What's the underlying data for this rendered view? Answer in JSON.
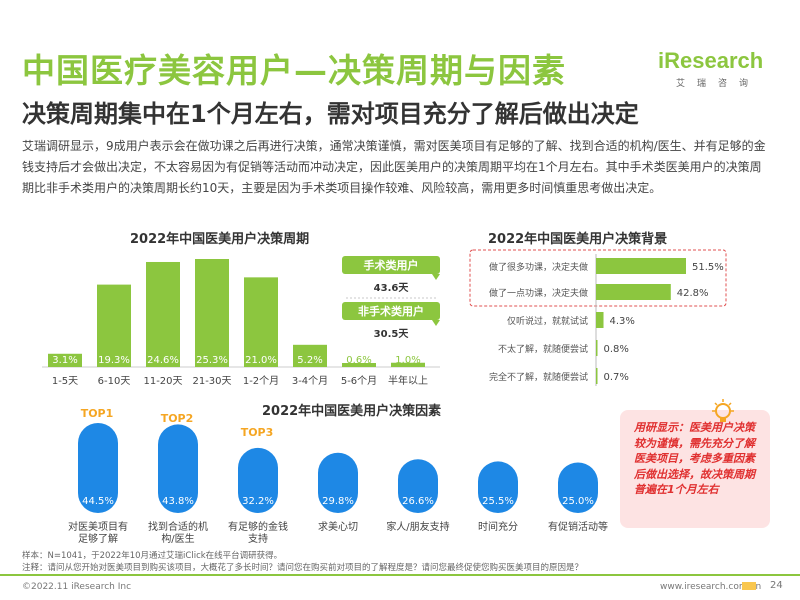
{
  "header": {
    "title": "中国医疗美容用户—决策周期与因素",
    "subtitle": "决策周期集中在1个月左右，需对项目充分了解后做出决定",
    "logo_text": "iResearch",
    "logo_sub": "艾瑞咨询"
  },
  "intro": "艾瑞调研显示，9成用户表示会在做功课之后再进行决策，通常决策谨慎，需对医美项目有足够的了解、找到合适的机构/医生、并有足够的金钱支持后才会做出决定，不太容易因为有促销等活动而冲动决定，因此医美用户的决策周期平均在1个月左右。其中手术类医美用户的决策周期比非手术类用户的决策周期长约10天，主要是因为手术类项目操作较难、风险较高，需用更多时间慎重思考做出决定。",
  "panels": {
    "cycle_title": "2022年中国医美用户决策周期",
    "background_title": "2022年中国医美用户决策背景",
    "factors_title": "2022年中国医美用户决策因素"
  },
  "callouts": {
    "surgical_label": "手术类用户",
    "surgical_value": "43.6天",
    "nonsurgical_label": "非手术类用户",
    "nonsurgical_value": "30.5天"
  },
  "top_labels": [
    "TOP1",
    "TOP2",
    "TOP3"
  ],
  "tip": {
    "text": "用研显示：医美用户决策较为谨慎，需先充分了解医美项目，考虑多重因素后做出选择，故决策周期普遍在1个月左右"
  },
  "notes": {
    "sample": "样本：N=1041，于2022年10月通过艾瑞iClick在线平台调研获得。",
    "remark": "注释：请问从您开始对医美项目到购买该项目，大概花了多长时间？请问您在购买前对项目的了解程度是？请问您最终促使您购买医美项目的原因是？"
  },
  "footer": {
    "copyright": "©2022.11 iResearch Inc",
    "site": "www.iresearch.com.cn",
    "page": "24"
  },
  "colors": {
    "brand_green": "#8cc63f",
    "blue": "#1e88e5",
    "tip_red": "#e03030",
    "top_orange": "#f5a623"
  },
  "chart_data": [
    {
      "type": "bar",
      "title": "2022年中国医美用户决策周期",
      "categories": [
        "1-5天",
        "6-10天",
        "11-20天",
        "21-30天",
        "1-2个月",
        "3-4个月",
        "5-6个月",
        "半年以上"
      ],
      "values": [
        3.1,
        19.3,
        24.6,
        25.3,
        21.0,
        5.2,
        0.6,
        1.0
      ],
      "labels": [
        "3.1%",
        "19.3%",
        "24.6%",
        "25.3%",
        "21.0%",
        "5.2%",
        "0.6%",
        "1.0%"
      ],
      "color": "#8cc63f"
    },
    {
      "type": "bar",
      "orientation": "horizontal",
      "title": "2022年中国医美用户决策背景",
      "categories": [
        "做了很多功课，决定夫做",
        "做了一点功课，决定夫做",
        "仅听说过，就就试试",
        "不太了解，就随便尝试",
        "完全不了解，就随便尝试"
      ],
      "values": [
        51.5,
        42.8,
        4.3,
        0.8,
        0.7
      ],
      "labels": [
        "51.5%",
        "42.8%",
        "4.3%",
        "0.8%",
        "0.7%"
      ],
      "color": "#8cc63f"
    },
    {
      "type": "bar",
      "title": "2022年中国医美用户决策因素",
      "categories": [
        "对医美项目有足够了解",
        "找到合适的机构/医生",
        "有足够的金钱支持",
        "求美心切",
        "家人/朋友支持",
        "时间充分",
        "有促销活动等"
      ],
      "values": [
        44.5,
        43.8,
        32.2,
        29.8,
        26.6,
        25.5,
        25.0
      ],
      "labels": [
        "44.5%",
        "43.8%",
        "32.2%",
        "29.8%",
        "26.6%",
        "25.5%",
        "25.0%"
      ],
      "color": "#1e88e5"
    }
  ]
}
